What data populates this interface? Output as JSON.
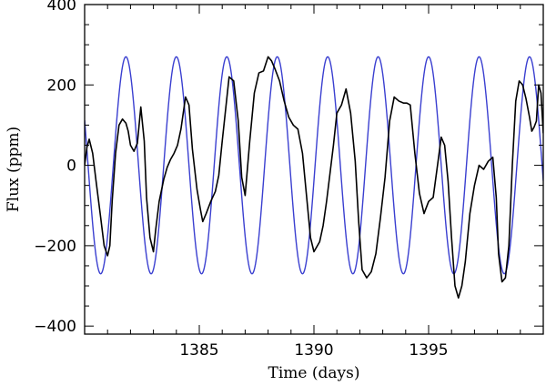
{
  "chart_data": {
    "type": "line",
    "xlabel": "Time (days)",
    "ylabel": "Flux (ppm)",
    "xlim": [
      1380.0,
      1400.0
    ],
    "ylim": [
      -420,
      400
    ],
    "x_ticks": [
      1385,
      1390,
      1395
    ],
    "y_ticks": [
      -400,
      -200,
      0,
      200,
      400
    ],
    "x_tick_labels": [
      "1385",
      "1390",
      "1395"
    ],
    "y_tick_labels": [
      "−400",
      "−200",
      "0",
      "200",
      "400"
    ],
    "grid": false,
    "legend": "none",
    "series": [
      {
        "color": "#000000",
        "style": "jagged observed light curve",
        "x": [
          1380.0,
          1380.1,
          1380.2,
          1380.35,
          1380.5,
          1380.7,
          1380.85,
          1381.0,
          1381.1,
          1381.2,
          1381.35,
          1381.5,
          1381.65,
          1381.8,
          1381.9,
          1382.0,
          1382.15,
          1382.3,
          1382.45,
          1382.6,
          1382.7,
          1382.85,
          1383.0,
          1383.1,
          1383.25,
          1383.45,
          1383.6,
          1383.75,
          1383.9,
          1384.05,
          1384.2,
          1384.4,
          1384.55,
          1384.7,
          1384.9,
          1385.05,
          1385.15,
          1385.3,
          1385.5,
          1385.7,
          1385.85,
          1386.0,
          1386.15,
          1386.3,
          1386.5,
          1386.7,
          1386.85,
          1387.0,
          1387.2,
          1387.4,
          1387.6,
          1387.8,
          1388.0,
          1388.15,
          1388.3,
          1388.5,
          1388.7,
          1388.9,
          1389.1,
          1389.3,
          1389.5,
          1389.7,
          1389.85,
          1390.0,
          1390.1,
          1390.25,
          1390.4,
          1390.55,
          1390.7,
          1390.85,
          1391.0,
          1391.2,
          1391.4,
          1391.6,
          1391.8,
          1391.95,
          1392.1,
          1392.3,
          1392.5,
          1392.7,
          1392.9,
          1393.1,
          1393.3,
          1393.5,
          1393.7,
          1393.9,
          1394.05,
          1394.2,
          1394.4,
          1394.6,
          1394.8,
          1395.0,
          1395.2,
          1395.4,
          1395.55,
          1395.7,
          1395.85,
          1396.0,
          1396.15,
          1396.3,
          1396.45,
          1396.6,
          1396.8,
          1397.0,
          1397.2,
          1397.4,
          1397.6,
          1397.8,
          1397.95,
          1398.05,
          1398.2,
          1398.35,
          1398.5,
          1398.65,
          1398.8,
          1398.95,
          1399.1,
          1399.25,
          1399.4,
          1399.5,
          1399.6,
          1399.7,
          1399.8,
          1399.9,
          1400.0
        ],
        "y": [
          0,
          45,
          65,
          30,
          -40,
          -130,
          -200,
          -225,
          -200,
          -90,
          30,
          100,
          115,
          105,
          85,
          50,
          35,
          55,
          145,
          60,
          -80,
          -180,
          -215,
          -160,
          -90,
          -35,
          -5,
          15,
          30,
          50,
          90,
          170,
          150,
          40,
          -60,
          -110,
          -140,
          -120,
          -90,
          -65,
          -25,
          60,
          140,
          220,
          210,
          110,
          -30,
          -75,
          60,
          180,
          230,
          235,
          270,
          260,
          240,
          210,
          160,
          120,
          100,
          90,
          30,
          -90,
          -180,
          -215,
          -205,
          -190,
          -150,
          -90,
          -20,
          50,
          130,
          150,
          190,
          130,
          10,
          -140,
          -260,
          -280,
          -265,
          -220,
          -130,
          -30,
          110,
          170,
          160,
          155,
          155,
          150,
          30,
          -70,
          -120,
          -90,
          -80,
          5,
          70,
          50,
          -40,
          -180,
          -300,
          -330,
          -300,
          -240,
          -120,
          -50,
          0,
          -10,
          10,
          20,
          -80,
          -220,
          -290,
          -280,
          -200,
          0,
          160,
          210,
          200,
          165,
          120,
          85,
          95,
          110,
          200,
          180,
          80
        ],
        "name": ""
      },
      {
        "color": "#3a3fd0",
        "style": "sinusoidal model fit",
        "model": {
          "amplitude": 270,
          "period_days": 2.2,
          "peak_at": 1381.8
        },
        "name": ""
      }
    ]
  }
}
